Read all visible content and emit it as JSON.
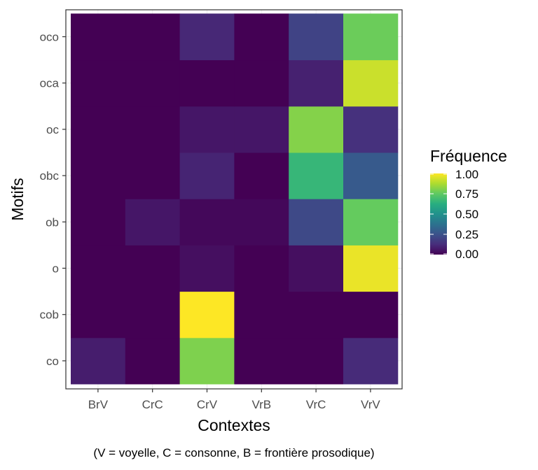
{
  "chart_data": {
    "type": "heatmap",
    "x": [
      "BrV",
      "CrC",
      "CrV",
      "VrB",
      "VrC",
      "VrV"
    ],
    "y": [
      "co",
      "cob",
      "o",
      "ob",
      "obc",
      "oc",
      "oca",
      "oco"
    ],
    "values": [
      [
        0.08,
        0.0,
        0.8,
        0.0,
        0.0,
        0.12
      ],
      [
        0.0,
        0.0,
        1.0,
        0.0,
        0.0,
        0.0
      ],
      [
        0.0,
        0.0,
        0.04,
        0.0,
        0.04,
        0.97
      ],
      [
        0.0,
        0.06,
        0.02,
        0.02,
        0.22,
        0.76
      ],
      [
        0.0,
        0.0,
        0.1,
        0.0,
        0.66,
        0.28
      ],
      [
        0.0,
        0.0,
        0.06,
        0.06,
        0.81,
        0.14
      ],
      [
        0.0,
        0.0,
        0.0,
        0.0,
        0.09,
        0.92
      ],
      [
        0.0,
        0.0,
        0.11,
        0.0,
        0.2,
        0.77
      ]
    ],
    "xlabel": "Contextes",
    "ylabel": "Motifs",
    "caption": "(V = voyelle, C = consonne, B = frontière prosodique)",
    "legend": {
      "title": "Fréquence",
      "position": "right",
      "ticks": [
        "1.00",
        "0.75",
        "0.50",
        "0.25",
        "0.00"
      ],
      "colormap": "viridis",
      "range": [
        0,
        1
      ]
    },
    "grid": true
  }
}
